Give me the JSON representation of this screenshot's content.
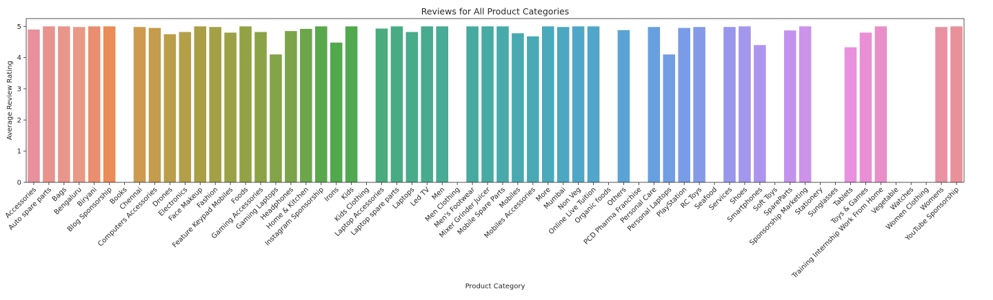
{
  "chart_data": {
    "type": "bar",
    "title": "Reviews for All Product Categories",
    "xlabel": "Product Category",
    "ylabel": "Average Review Rating",
    "ylim": [
      0,
      5.25
    ],
    "yticks": [
      0,
      1,
      2,
      3,
      4,
      5
    ],
    "grid": false,
    "legend": "none",
    "categories": [
      "Accessories",
      "Auto spare parts",
      "Bags",
      "Bengaluru",
      "Biryani",
      "Blog Sponsorship",
      "Books",
      "Chennai",
      "Computers Accessories",
      "Drones",
      "Electronics",
      "Face Makeup",
      "Fashion",
      "Feature Keypad Mobiles",
      "Foods",
      "Gaming Accessories",
      "Gaming Laptops",
      "Headphones",
      "Home & Kitchen",
      "Instagram Sponsorship",
      "Irons",
      "Kids",
      "Kids Clothing",
      "Laptop Accessories",
      "Laptop spare parts",
      "Laptops",
      "Led TV",
      "Men",
      "Men Clothing",
      "Men's Footwear",
      "Mixer Grinder Juicer",
      "Mobile Spare Parts",
      "Mobiles",
      "Mobiles Accessories",
      "More",
      "Mumbai",
      "Non Veg",
      "Online Live Tuition",
      "Organic foods",
      "Others",
      "PCD Pharma Franchise",
      "Personal Care",
      "Personal Laptops",
      "PlayStation",
      "RC Toys",
      "Seafood",
      "Services",
      "Shoes",
      "Smartphones",
      "Soft Toys",
      "SpareParts",
      "Sponsorship Marketing",
      "Stationery",
      "Sunglasses",
      "Tablets",
      "Toys & Games",
      "Training Internship Work From Home",
      "Vegetable",
      "Watches",
      "Women Clothing",
      "Womens",
      "YouTube Sponsorship"
    ],
    "values": [
      4.9,
      5.0,
      5.0,
      4.98,
      5.0,
      5.0,
      null,
      4.98,
      4.95,
      4.75,
      4.82,
      5.0,
      4.98,
      4.8,
      5.0,
      4.82,
      4.1,
      4.85,
      4.92,
      5.0,
      4.48,
      5.0,
      null,
      4.93,
      5.0,
      4.82,
      5.0,
      5.0,
      null,
      5.0,
      5.0,
      5.0,
      4.78,
      4.68,
      5.0,
      4.98,
      5.0,
      5.0,
      null,
      4.88,
      null,
      4.98,
      4.1,
      4.95,
      4.98,
      null,
      4.98,
      5.0,
      4.4,
      null,
      4.87,
      5.0,
      null,
      null,
      4.33,
      4.8,
      5.0,
      null,
      null,
      null,
      4.98,
      5.0
    ],
    "colors": [
      "#e8919c",
      "#e9938f",
      "#e9968a",
      "#e99986",
      "#e98e6f",
      "#e98c58",
      "#d59a4f",
      "#cd9a4f",
      "#c49c4c",
      "#bb9e4a",
      "#b39f49",
      "#ab9f46",
      "#a3a046",
      "#9ba145",
      "#93a245",
      "#8ba346",
      "#83a447",
      "#7ba549",
      "#6ba64b",
      "#5aa84c",
      "#52a84d",
      "#50a94e",
      "#4daa6c",
      "#4aab7c",
      "#49ab84",
      "#48ab8a",
      "#48ab8f",
      "#47ab95",
      "#47ab9a",
      "#47aaa0",
      "#47aaa5",
      "#48aaab",
      "#48aab0",
      "#49a9b5",
      "#4aa9bb",
      "#4ca8c0",
      "#4ea7c6",
      "#51a6cb",
      "#55a5d0",
      "#5aa3d5",
      "#60a1da",
      "#689fde",
      "#719de2",
      "#7a9be5",
      "#849ae8",
      "#8e98ea",
      "#9897ec",
      "#a396ed",
      "#ad95ee",
      "#b794ed",
      "#c293ec",
      "#cc93ea",
      "#d692e7",
      "#e091e3",
      "#e990de",
      "#e98fd5",
      "#e98fc8",
      "#e88fbc",
      "#e890b1",
      "#e891a8",
      "#e891a1",
      "#e89199"
    ]
  }
}
